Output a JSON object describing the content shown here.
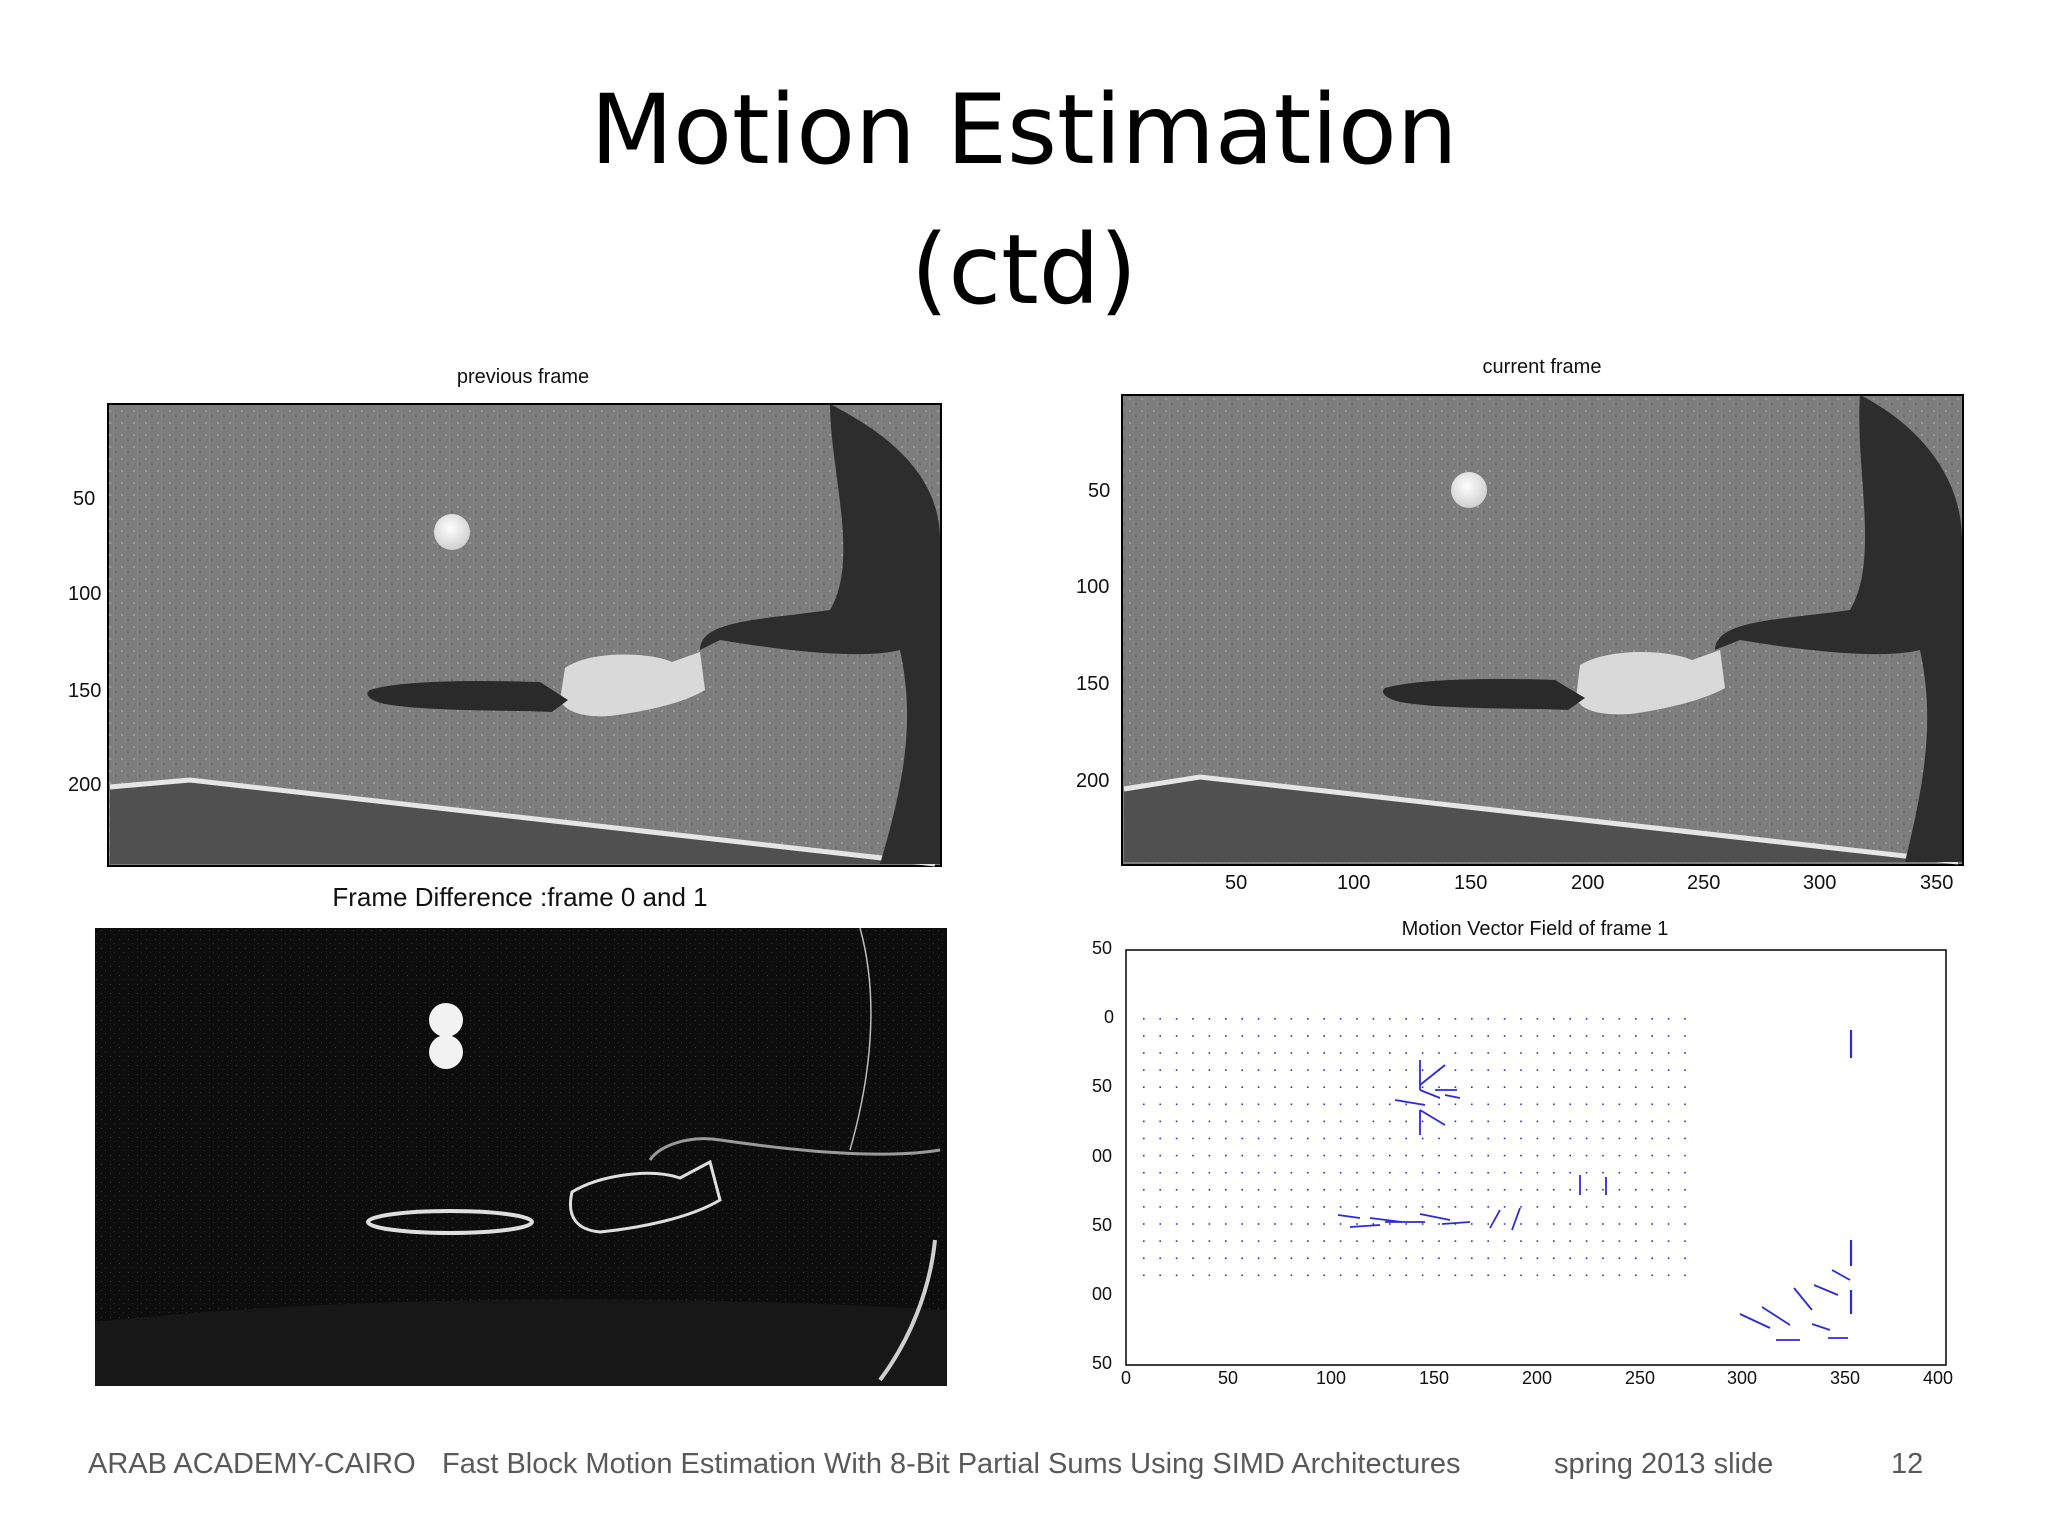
{
  "slide": {
    "title_line1": "Motion Estimation",
    "title_line2": "(ctd)"
  },
  "panels": {
    "previous_frame": {
      "title": "previous frame",
      "y_ticks": [
        "50",
        "100",
        "150",
        "200"
      ]
    },
    "current_frame": {
      "title": "current frame",
      "y_ticks": [
        "50",
        "100",
        "150",
        "200"
      ],
      "x_ticks": [
        "50",
        "100",
        "150",
        "200",
        "250",
        "300",
        "350"
      ]
    },
    "frame_difference": {
      "title": "Frame Difference :frame 0 and 1"
    },
    "motion_vector_field": {
      "title": "Motion Vector Field of frame 1",
      "y_ticks": [
        "50",
        "0",
        "50",
        "00",
        "50",
        "00",
        "50"
      ],
      "x_ticks": [
        "0",
        "50",
        "100",
        "150",
        "200",
        "250",
        "300",
        "350",
        "400"
      ]
    }
  },
  "footer": {
    "org": "ARAB ACADEMY-CAIRO",
    "paper": "Fast Block Motion Estimation With 8-Bit Partial Sums Using SIMD Architectures",
    "term": "spring 2013 slide",
    "page": "12"
  },
  "colors": {
    "vector_color": "#2b2bd6",
    "frame_background": "#7d7d7d",
    "difference_background": "#0d0d0d"
  }
}
